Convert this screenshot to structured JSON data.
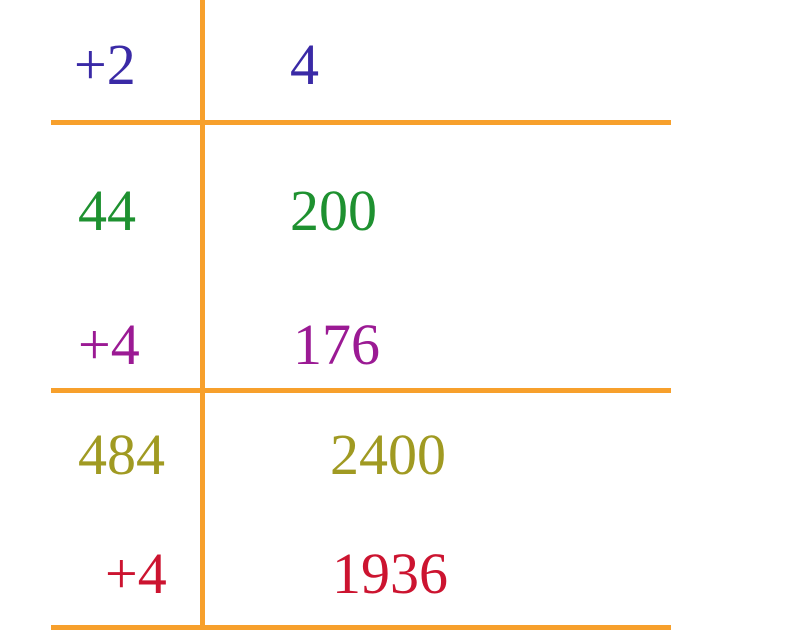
{
  "colors": {
    "rule": "#f7a02c",
    "blue": "#3a2aa6",
    "green": "#1e9130",
    "purple": "#9b1a94",
    "olive": "#a09a22",
    "red": "#cc1430"
  },
  "rows": [
    {
      "left": "+2",
      "right": "4"
    },
    {
      "left": "44",
      "right": "200"
    },
    {
      "left": "+4",
      "right": "176"
    },
    {
      "left": "484",
      "right": "2400"
    },
    {
      "left": "+4",
      "right": "1936"
    }
  ]
}
